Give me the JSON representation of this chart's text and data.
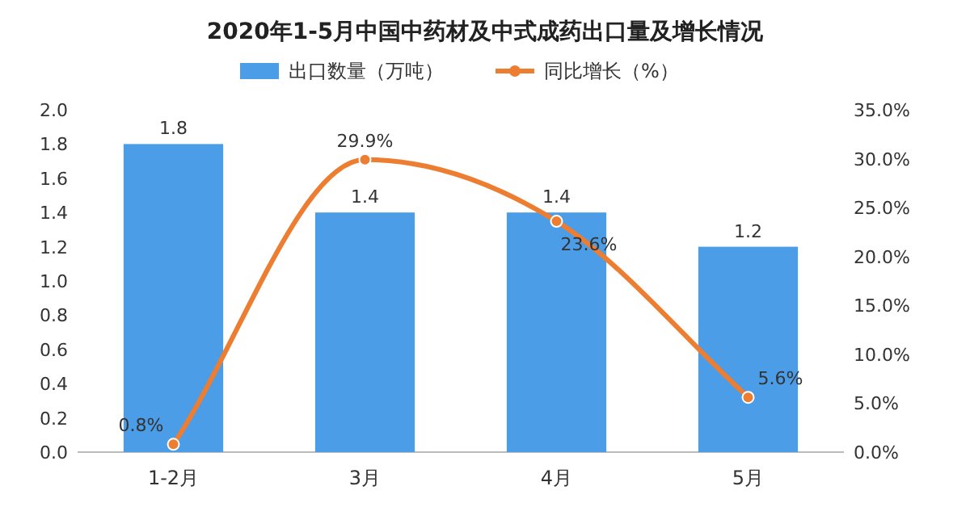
{
  "chart_data": {
    "type": "bar",
    "title": "2020年1-5月中国中药材及中式成药出口量及增长情况",
    "categories": [
      "1-2月",
      "3月",
      "4月",
      "5月"
    ],
    "series": [
      {
        "name": "出口数量（万吨）",
        "color": "#4a9de6",
        "values": [
          1.8,
          1.4,
          1.4,
          1.2
        ],
        "value_labels": [
          "1.8",
          "1.4",
          "1.4",
          "1.2"
        ]
      },
      {
        "name": "同比增长（%）",
        "type": "line",
        "axis": "y2",
        "color": "#ed7d31",
        "values": [
          0.8,
          29.9,
          23.6,
          5.6
        ],
        "value_labels": [
          "0.8%",
          "29.9%",
          "23.6%",
          "5.6%"
        ]
      }
    ],
    "ylim": [
      0,
      2
    ],
    "yticks": [
      {
        "value": 0,
        "label": "0.0"
      },
      {
        "value": 0.2,
        "label": "0.2"
      },
      {
        "value": 0.4,
        "label": "0.4"
      },
      {
        "value": 0.6,
        "label": "0.6"
      },
      {
        "value": 0.8,
        "label": "0.8"
      },
      {
        "value": 1,
        "label": "1.0"
      },
      {
        "value": 1.2,
        "label": "1.2"
      },
      {
        "value": 1.4,
        "label": "1.4"
      },
      {
        "value": 1.6,
        "label": "1.6"
      },
      {
        "value": 1.8,
        "label": "1.8"
      },
      {
        "value": 2,
        "label": "2.0"
      }
    ],
    "y2lim": [
      0,
      35
    ],
    "y2ticks": [
      {
        "value": 0,
        "label": "0.0%"
      },
      {
        "value": 5,
        "label": "5.0%"
      },
      {
        "value": 10,
        "label": "10.0%"
      },
      {
        "value": 15,
        "label": "15.0%"
      },
      {
        "value": 20,
        "label": "20.0%"
      },
      {
        "value": 25,
        "label": "25.0%"
      },
      {
        "value": 30,
        "label": "30.0%"
      },
      {
        "value": 35,
        "label": "35.0%"
      }
    ],
    "legend": "top",
    "marker": "circle"
  }
}
